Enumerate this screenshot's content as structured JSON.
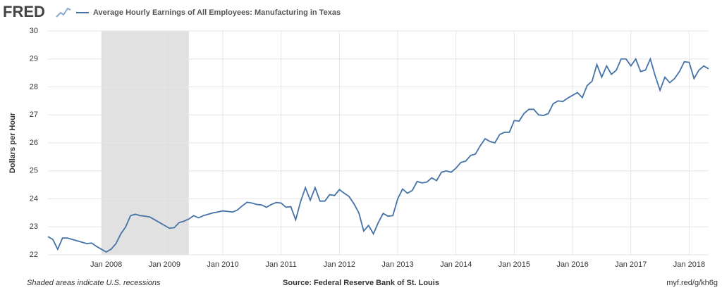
{
  "logo": "FRED",
  "chart_data": {
    "type": "line",
    "title": "Average Hourly Earnings of All Employees: Manufacturing in Texas",
    "ylabel": "Dollars per Hour",
    "note": "Shaded areas indicate U.S. recessions",
    "source": "Source: Federal Reserve Bank of St. Louis",
    "link": "myf.red/g/kh6g",
    "grid": true,
    "recession_color": "#e1e1e1",
    "recessions": [
      {
        "start": "2007-12",
        "end": "2009-06"
      }
    ],
    "xlim": [
      "2007-01",
      "2018-05"
    ],
    "xticks": [
      {
        "value": "2008-01",
        "label": "Jan 2008"
      },
      {
        "value": "2009-01",
        "label": "Jan 2009"
      },
      {
        "value": "2010-01",
        "label": "Jan 2010"
      },
      {
        "value": "2011-01",
        "label": "Jan 2011"
      },
      {
        "value": "2012-01",
        "label": "Jan 2012"
      },
      {
        "value": "2013-01",
        "label": "Jan 2013"
      },
      {
        "value": "2014-01",
        "label": "Jan 2014"
      },
      {
        "value": "2015-01",
        "label": "Jan 2015"
      },
      {
        "value": "2016-01",
        "label": "Jan 2016"
      },
      {
        "value": "2017-01",
        "label": "Jan 2017"
      },
      {
        "value": "2018-01",
        "label": "Jan 2018"
      }
    ],
    "ylim": [
      22,
      30
    ],
    "yticks": [
      22,
      23,
      24,
      25,
      26,
      27,
      28,
      29,
      30
    ],
    "x": [
      "2007-01",
      "2007-02",
      "2007-03",
      "2007-04",
      "2007-05",
      "2007-06",
      "2007-07",
      "2007-08",
      "2007-09",
      "2007-10",
      "2007-11",
      "2007-12",
      "2008-01",
      "2008-02",
      "2008-03",
      "2008-04",
      "2008-05",
      "2008-06",
      "2008-07",
      "2008-08",
      "2008-09",
      "2008-10",
      "2008-11",
      "2008-12",
      "2009-01",
      "2009-02",
      "2009-03",
      "2009-04",
      "2009-05",
      "2009-06",
      "2009-07",
      "2009-08",
      "2009-09",
      "2009-10",
      "2009-11",
      "2009-12",
      "2010-01",
      "2010-02",
      "2010-03",
      "2010-04",
      "2010-05",
      "2010-06",
      "2010-07",
      "2010-08",
      "2010-09",
      "2010-10",
      "2010-11",
      "2010-12",
      "2011-01",
      "2011-02",
      "2011-03",
      "2011-04",
      "2011-05",
      "2011-06",
      "2011-07",
      "2011-08",
      "2011-09",
      "2011-10",
      "2011-11",
      "2011-12",
      "2012-01",
      "2012-02",
      "2012-03",
      "2012-04",
      "2012-05",
      "2012-06",
      "2012-07",
      "2012-08",
      "2012-09",
      "2012-10",
      "2012-11",
      "2012-12",
      "2013-01",
      "2013-02",
      "2013-03",
      "2013-04",
      "2013-05",
      "2013-06",
      "2013-07",
      "2013-08",
      "2013-09",
      "2013-10",
      "2013-11",
      "2013-12",
      "2014-01",
      "2014-02",
      "2014-03",
      "2014-04",
      "2014-05",
      "2014-06",
      "2014-07",
      "2014-08",
      "2014-09",
      "2014-10",
      "2014-11",
      "2014-12",
      "2015-01",
      "2015-02",
      "2015-03",
      "2015-04",
      "2015-05",
      "2015-06",
      "2015-07",
      "2015-08",
      "2015-09",
      "2015-10",
      "2015-11",
      "2015-12",
      "2016-01",
      "2016-02",
      "2016-03",
      "2016-04",
      "2016-05",
      "2016-06",
      "2016-07",
      "2016-08",
      "2016-09",
      "2016-10",
      "2016-11",
      "2016-12",
      "2017-01",
      "2017-02",
      "2017-03",
      "2017-04",
      "2017-05",
      "2017-06",
      "2017-07",
      "2017-08",
      "2017-09",
      "2017-10",
      "2017-11",
      "2017-12",
      "2018-01",
      "2018-02",
      "2018-03",
      "2018-04",
      "2018-05"
    ],
    "series": [
      {
        "name": "Average Hourly Earnings of All Employees: Manufacturing in Texas",
        "color": "#4572a7",
        "values": [
          22.65,
          22.55,
          22.2,
          22.6,
          22.6,
          22.55,
          22.5,
          22.45,
          22.4,
          22.42,
          22.3,
          22.2,
          22.1,
          22.2,
          22.4,
          22.75,
          23.0,
          23.4,
          23.45,
          23.4,
          23.38,
          23.35,
          23.25,
          23.15,
          23.05,
          22.95,
          22.97,
          23.15,
          23.2,
          23.28,
          23.4,
          23.32,
          23.4,
          23.45,
          23.5,
          23.53,
          23.57,
          23.55,
          23.53,
          23.6,
          23.75,
          23.88,
          23.85,
          23.8,
          23.78,
          23.7,
          23.8,
          23.87,
          23.85,
          23.7,
          23.72,
          23.25,
          23.9,
          24.4,
          23.95,
          24.4,
          23.92,
          23.92,
          24.15,
          24.12,
          24.33,
          24.2,
          24.08,
          23.82,
          23.5,
          22.85,
          23.05,
          22.75,
          23.15,
          23.48,
          23.38,
          23.4,
          24.0,
          24.35,
          24.2,
          24.3,
          24.62,
          24.57,
          24.6,
          24.75,
          24.65,
          24.95,
          25.0,
          24.95,
          25.1,
          25.3,
          25.35,
          25.55,
          25.6,
          25.9,
          26.15,
          26.05,
          26.0,
          26.3,
          26.38,
          26.38,
          26.8,
          26.78,
          27.05,
          27.2,
          27.2,
          27.0,
          26.98,
          27.05,
          27.4,
          27.5,
          27.48,
          27.6,
          27.7,
          27.8,
          27.62,
          28.05,
          28.2,
          28.8,
          28.35,
          28.75,
          28.45,
          28.6,
          29.0,
          29.0,
          28.75,
          29.0,
          28.55,
          28.6,
          29.0,
          28.4,
          27.88,
          28.35,
          28.15,
          28.3,
          28.55,
          28.9,
          28.88,
          28.3,
          28.6,
          28.75,
          28.65
        ]
      }
    ]
  }
}
